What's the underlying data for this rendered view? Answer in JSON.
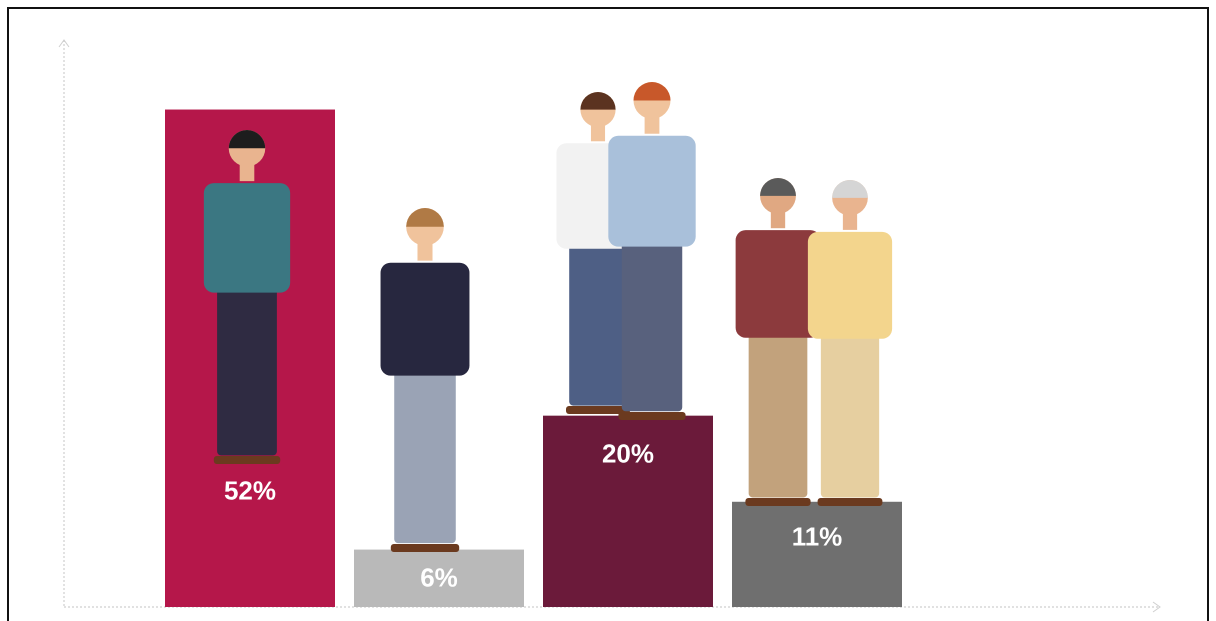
{
  "chart_data": {
    "type": "bar",
    "categories": [
      null,
      null,
      null,
      null
    ],
    "values": [
      52,
      6,
      20,
      11
    ],
    "value_labels": [
      "52%",
      "6%",
      "20%",
      "11%"
    ],
    "colors": [
      "#b5174a",
      "#b9b9b9",
      "#6b1a3a",
      "#6f6f6f"
    ],
    "ylim": [
      0,
      60
    ]
  }
}
